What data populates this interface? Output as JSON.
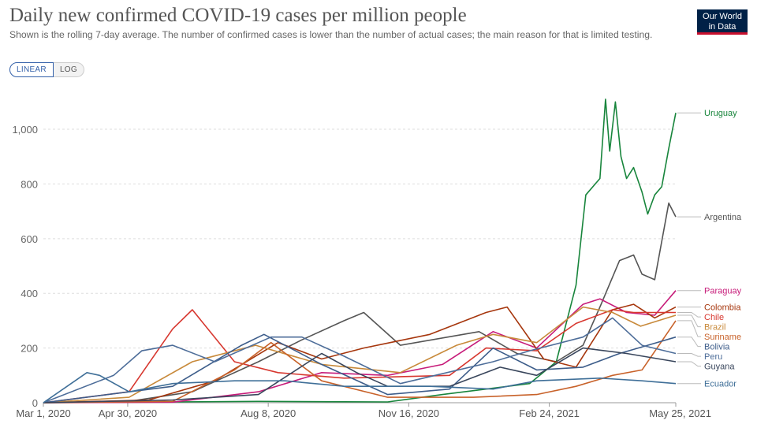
{
  "header": {
    "title": "Daily new confirmed COVID-19 cases per million people",
    "subtitle": "Shown is the rolling 7-day average. The number of confirmed cases is lower than the number of actual cases; the main reason for that is limited testing.",
    "logo_line1": "Our World",
    "logo_line2": "in Data"
  },
  "controls": {
    "linear_label": "LINEAR",
    "log_label": "LOG",
    "selected": "LINEAR"
  },
  "chart_data": {
    "type": "line",
    "title": "Daily new confirmed COVID-19 cases per million people",
    "x_tick_labels": [
      "Mar 1, 2020",
      "Apr 30, 2020",
      "Aug 8, 2020",
      "Nov 16, 2020",
      "Feb 24, 2021",
      "May 25, 2021"
    ],
    "x_tick_dates": [
      "2020-03-01",
      "2020-04-30",
      "2020-08-08",
      "2020-11-16",
      "2021-02-24",
      "2021-05-25"
    ],
    "xlim": [
      "2020-03-01",
      "2021-05-25"
    ],
    "y_ticks": [
      0,
      200,
      400,
      600,
      800,
      1000
    ],
    "y_tick_labels": [
      "0",
      "200",
      "400",
      "600",
      "800",
      "1,000"
    ],
    "ylim": [
      0,
      1150
    ],
    "scale": "linear",
    "grid": "horizontal dashed",
    "legend": "labels at right end of lines",
    "series": [
      {
        "name": "Uruguay",
        "color": "#18853c",
        "x": [
          "2020-03-01",
          "2020-05-01",
          "2020-08-01",
          "2020-11-01",
          "2020-12-10",
          "2021-01-10",
          "2021-02-10",
          "2021-03-01",
          "2021-03-15",
          "2021-03-22",
          "2021-04-01",
          "2021-04-05",
          "2021-04-08",
          "2021-04-12",
          "2021-04-16",
          "2021-04-20",
          "2021-04-25",
          "2021-05-01",
          "2021-05-05",
          "2021-05-10",
          "2021-05-15",
          "2021-05-20",
          "2021-05-25"
        ],
        "values": [
          0,
          2,
          5,
          3,
          30,
          50,
          70,
          150,
          430,
          760,
          820,
          1110,
          920,
          1100,
          900,
          820,
          860,
          770,
          690,
          760,
          790,
          930,
          1060
        ]
      },
      {
        "name": "Argentina",
        "color": "#555555",
        "x": [
          "2020-03-01",
          "2020-05-01",
          "2020-06-15",
          "2020-08-01",
          "2020-09-01",
          "2020-10-01",
          "2020-10-15",
          "2020-11-10",
          "2021-01-05",
          "2021-02-01",
          "2021-03-01",
          "2021-03-20",
          "2021-04-01",
          "2021-04-15",
          "2021-04-25",
          "2021-05-01",
          "2021-05-10",
          "2021-05-20",
          "2021-05-25"
        ],
        "values": [
          0,
          5,
          40,
          150,
          230,
          300,
          330,
          210,
          260,
          180,
          150,
          210,
          350,
          520,
          540,
          470,
          450,
          730,
          680
        ]
      },
      {
        "name": "Paraguay",
        "color": "#c71c7a",
        "x": [
          "2020-03-01",
          "2020-06-01",
          "2020-08-01",
          "2020-09-15",
          "2020-11-01",
          "2020-12-10",
          "2021-01-15",
          "2021-02-15",
          "2021-03-20",
          "2021-04-01",
          "2021-04-20",
          "2021-05-10",
          "2021-05-25"
        ],
        "values": [
          0,
          2,
          40,
          110,
          100,
          140,
          260,
          200,
          360,
          380,
          330,
          320,
          410
        ]
      },
      {
        "name": "Colombia",
        "color": "#a6360d",
        "x": [
          "2020-03-01",
          "2020-05-15",
          "2020-07-01",
          "2020-08-15",
          "2020-09-15",
          "2020-10-15",
          "2020-12-01",
          "2021-01-10",
          "2021-01-25",
          "2021-02-20",
          "2021-03-15",
          "2021-04-10",
          "2021-04-25",
          "2021-05-10",
          "2021-05-25"
        ],
        "values": [
          0,
          10,
          80,
          220,
          160,
          200,
          250,
          330,
          350,
          160,
          130,
          340,
          360,
          310,
          350
        ]
      },
      {
        "name": "Chile",
        "color": "#d7372f",
        "x": [
          "2020-03-01",
          "2020-05-01",
          "2020-06-01",
          "2020-06-15",
          "2020-07-15",
          "2020-08-15",
          "2020-10-01",
          "2020-12-15",
          "2021-01-10",
          "2021-02-15",
          "2021-03-15",
          "2021-04-10",
          "2021-04-25",
          "2021-05-25"
        ],
        "values": [
          0,
          40,
          270,
          340,
          150,
          110,
          90,
          100,
          200,
          190,
          290,
          340,
          330,
          330
        ]
      },
      {
        "name": "Brazil",
        "color": "#c88a3b",
        "x": [
          "2020-03-01",
          "2020-05-01",
          "2020-06-15",
          "2020-07-30",
          "2020-09-15",
          "2020-11-10",
          "2020-12-20",
          "2021-01-15",
          "2021-02-15",
          "2021-03-20",
          "2021-04-10",
          "2021-04-30",
          "2021-05-25"
        ],
        "values": [
          0,
          20,
          150,
          210,
          140,
          110,
          210,
          250,
          220,
          350,
          330,
          280,
          320
        ]
      },
      {
        "name": "Suriname",
        "color": "#c8622a",
        "x": [
          "2020-03-01",
          "2020-06-01",
          "2020-07-15",
          "2020-08-10",
          "2020-09-15",
          "2020-11-01",
          "2021-01-01",
          "2021-02-15",
          "2021-03-15",
          "2021-04-10",
          "2021-05-01",
          "2021-05-25"
        ],
        "values": [
          0,
          5,
          120,
          220,
          80,
          20,
          20,
          30,
          60,
          100,
          120,
          300
        ]
      },
      {
        "name": "Bolivia",
        "color": "#3d5d8a",
        "x": [
          "2020-03-01",
          "2020-06-01",
          "2020-07-20",
          "2020-08-05",
          "2020-09-15",
          "2020-11-01",
          "2020-12-15",
          "2021-01-15",
          "2021-02-15",
          "2021-03-20",
          "2021-04-15",
          "2021-05-05",
          "2021-05-25"
        ],
        "values": [
          0,
          60,
          210,
          250,
          140,
          30,
          50,
          200,
          120,
          130,
          180,
          210,
          240
        ]
      },
      {
        "name": "Peru",
        "color": "#4d6d99",
        "x": [
          "2020-03-01",
          "2020-04-20",
          "2020-05-10",
          "2020-06-01",
          "2020-07-01",
          "2020-08-10",
          "2020-09-01",
          "2020-10-01",
          "2020-11-10",
          "2021-01-15",
          "2021-02-10",
          "2021-03-20",
          "2021-04-10",
          "2021-05-01",
          "2021-05-25"
        ],
        "values": [
          0,
          100,
          190,
          210,
          150,
          240,
          240,
          170,
          70,
          150,
          190,
          240,
          310,
          210,
          180
        ]
      },
      {
        "name": "Guyana",
        "color": "#39465c",
        "x": [
          "2020-03-01",
          "2020-06-01",
          "2020-08-01",
          "2020-09-15",
          "2020-10-10",
          "2020-11-01",
          "2020-12-15",
          "2021-01-20",
          "2021-02-15",
          "2021-03-20",
          "2021-04-20",
          "2021-05-25"
        ],
        "values": [
          0,
          10,
          30,
          180,
          110,
          60,
          60,
          130,
          100,
          200,
          180,
          150
        ]
      },
      {
        "name": "Ecuador",
        "color": "#3f6f98",
        "x": [
          "2020-03-01",
          "2020-04-01",
          "2020-04-10",
          "2020-05-01",
          "2020-06-01",
          "2020-07-15",
          "2020-08-20",
          "2020-10-01",
          "2020-12-01",
          "2021-01-15",
          "2021-02-15",
          "2021-04-01",
          "2021-05-01",
          "2021-05-25"
        ],
        "values": [
          0,
          110,
          100,
          40,
          70,
          80,
          80,
          60,
          60,
          50,
          80,
          90,
          80,
          70
        ]
      }
    ]
  }
}
